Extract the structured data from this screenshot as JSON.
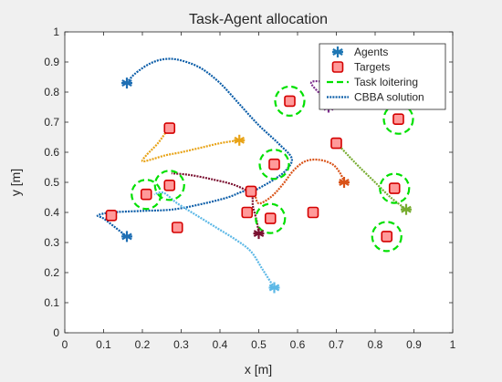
{
  "chart_data": {
    "type": "scatter",
    "title": "Task-Agent allocation",
    "xlabel": "x [m]",
    "ylabel": "y [m]",
    "xlim": [
      0,
      1
    ],
    "ylim": [
      0,
      1
    ],
    "xticks": [
      "0",
      "0.1",
      "0.2",
      "0.3",
      "0.4",
      "0.5",
      "0.6",
      "0.7",
      "0.8",
      "0.9",
      "1"
    ],
    "yticks": [
      "0",
      "0.1",
      "0.2",
      "0.3",
      "0.4",
      "0.5",
      "0.6",
      "0.7",
      "0.8",
      "0.9",
      "1"
    ],
    "grid": false,
    "legend": {
      "placement": "top-right",
      "entries": [
        {
          "label": "Agents",
          "kind": "agent",
          "color": "#1f77b4"
        },
        {
          "label": "Targets",
          "kind": "target",
          "color": "#d40000"
        },
        {
          "label": "Task loitering",
          "kind": "loiter",
          "color": "#00e000"
        },
        {
          "label": "CBBA solution",
          "kind": "cbba",
          "color": "#0b5da8"
        }
      ]
    },
    "colors": {
      "target_fill": "#ff9a9a",
      "target_edge": "#d40000",
      "loiter": "#00e000",
      "axes_bg": "#ffffff",
      "figure_bg": "#f0f0f0"
    },
    "agents": [
      {
        "x": 0.16,
        "y": 0.83,
        "color": "#1f6fb4"
      },
      {
        "x": 0.16,
        "y": 0.32,
        "color": "#1f6fb4"
      },
      {
        "x": 0.45,
        "y": 0.64,
        "color": "#e8a317"
      },
      {
        "x": 0.54,
        "y": 0.15,
        "color": "#5cb8e6"
      },
      {
        "x": 0.5,
        "y": 0.33,
        "color": "#7a1030"
      },
      {
        "x": 0.68,
        "y": 0.75,
        "color": "#7e2f8e"
      },
      {
        "x": 0.72,
        "y": 0.5,
        "color": "#d95319"
      },
      {
        "x": 0.88,
        "y": 0.41,
        "color": "#77ac30"
      }
    ],
    "targets": [
      {
        "x": 0.58,
        "y": 0.77,
        "loiter": true
      },
      {
        "x": 0.86,
        "y": 0.71,
        "loiter": true
      },
      {
        "x": 0.27,
        "y": 0.68,
        "loiter": false
      },
      {
        "x": 0.7,
        "y": 0.63,
        "loiter": false
      },
      {
        "x": 0.54,
        "y": 0.56,
        "loiter": true
      },
      {
        "x": 0.21,
        "y": 0.46,
        "loiter": true
      },
      {
        "x": 0.27,
        "y": 0.49,
        "loiter": true
      },
      {
        "x": 0.48,
        "y": 0.47,
        "loiter": false
      },
      {
        "x": 0.85,
        "y": 0.48,
        "loiter": true
      },
      {
        "x": 0.12,
        "y": 0.39,
        "loiter": false
      },
      {
        "x": 0.47,
        "y": 0.4,
        "loiter": false
      },
      {
        "x": 0.53,
        "y": 0.38,
        "loiter": true
      },
      {
        "x": 0.64,
        "y": 0.4,
        "loiter": false
      },
      {
        "x": 0.29,
        "y": 0.35,
        "loiter": false
      },
      {
        "x": 0.83,
        "y": 0.32,
        "loiter": true
      }
    ],
    "paths": [
      {
        "color": "#0b5da8",
        "points": [
          [
            0.16,
            0.83
          ],
          [
            0.18,
            0.86
          ],
          [
            0.22,
            0.895
          ],
          [
            0.26,
            0.91
          ],
          [
            0.3,
            0.905
          ],
          [
            0.35,
            0.88
          ],
          [
            0.4,
            0.83
          ],
          [
            0.45,
            0.76
          ],
          [
            0.5,
            0.69
          ],
          [
            0.55,
            0.63
          ],
          [
            0.585,
            0.58
          ],
          [
            0.57,
            0.54
          ],
          [
            0.54,
            0.51
          ],
          [
            0.5,
            0.48
          ],
          [
            0.47,
            0.46
          ]
        ]
      },
      {
        "color": "#0b5da8",
        "points": [
          [
            0.16,
            0.32
          ],
          [
            0.13,
            0.35
          ],
          [
            0.1,
            0.38
          ],
          [
            0.085,
            0.39
          ],
          [
            0.12,
            0.4
          ],
          [
            0.2,
            0.405
          ],
          [
            0.28,
            0.41
          ],
          [
            0.36,
            0.43
          ],
          [
            0.42,
            0.45
          ],
          [
            0.46,
            0.47
          ],
          [
            0.48,
            0.47
          ]
        ]
      },
      {
        "color": "#e8a317",
        "points": [
          [
            0.45,
            0.64
          ],
          [
            0.4,
            0.63
          ],
          [
            0.35,
            0.615
          ],
          [
            0.3,
            0.6
          ],
          [
            0.26,
            0.59
          ],
          [
            0.22,
            0.575
          ],
          [
            0.2,
            0.57
          ],
          [
            0.21,
            0.59
          ],
          [
            0.24,
            0.63
          ],
          [
            0.265,
            0.675
          ]
        ]
      },
      {
        "color": "#5cb8e6",
        "points": [
          [
            0.54,
            0.15
          ],
          [
            0.51,
            0.21
          ],
          [
            0.48,
            0.27
          ],
          [
            0.44,
            0.31
          ],
          [
            0.39,
            0.35
          ],
          [
            0.34,
            0.39
          ],
          [
            0.29,
            0.43
          ],
          [
            0.255,
            0.465
          ],
          [
            0.23,
            0.46
          ]
        ]
      },
      {
        "color": "#7a1030",
        "points": [
          [
            0.5,
            0.33
          ],
          [
            0.495,
            0.37
          ],
          [
            0.485,
            0.42
          ],
          [
            0.48,
            0.46
          ],
          [
            0.44,
            0.49
          ],
          [
            0.38,
            0.51
          ],
          [
            0.32,
            0.525
          ],
          [
            0.275,
            0.53
          ]
        ]
      },
      {
        "color": "#7e2f8e",
        "points": [
          [
            0.68,
            0.75
          ],
          [
            0.66,
            0.79
          ],
          [
            0.635,
            0.83
          ],
          [
            0.66,
            0.835
          ],
          [
            0.69,
            0.82
          ]
        ]
      },
      {
        "color": "#d95319",
        "points": [
          [
            0.72,
            0.5
          ],
          [
            0.71,
            0.53
          ],
          [
            0.69,
            0.56
          ],
          [
            0.655,
            0.575
          ],
          [
            0.62,
            0.57
          ],
          [
            0.59,
            0.54
          ],
          [
            0.56,
            0.49
          ],
          [
            0.53,
            0.45
          ],
          [
            0.5,
            0.43
          ],
          [
            0.49,
            0.46
          ],
          [
            0.485,
            0.47
          ]
        ]
      },
      {
        "color": "#77ac30",
        "points": [
          [
            0.88,
            0.41
          ],
          [
            0.84,
            0.45
          ],
          [
            0.8,
            0.5
          ],
          [
            0.76,
            0.55
          ],
          [
            0.73,
            0.59
          ],
          [
            0.705,
            0.625
          ]
        ]
      }
    ]
  }
}
